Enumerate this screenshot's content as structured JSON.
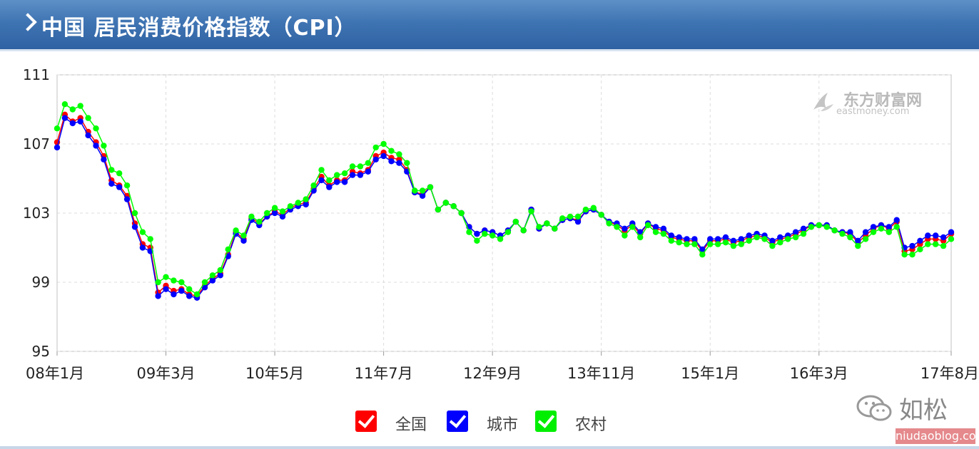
{
  "header": {
    "title": "中国 居民消费价格指数（CPI）"
  },
  "watermark": {
    "brand": "东方财富网",
    "domain": "eastmoney.com"
  },
  "branding": {
    "wechat_name": "如松",
    "site": "niudaoblog.com"
  },
  "colors": {
    "national": "#ff0000",
    "urban": "#0000ff",
    "rural": "#00ff00",
    "grid": "#dcdcdc",
    "axis": "#c0c0c0"
  },
  "chart_data": {
    "type": "line",
    "title": "",
    "xlabel": "",
    "ylabel": "",
    "ylim": [
      95,
      111
    ],
    "yticks": [
      "111",
      "107",
      "103",
      "99",
      "95"
    ],
    "xtick_labels": [
      "08年1月",
      "09年3月",
      "10年5月",
      "11年7月",
      "12年9月",
      "13年11月",
      "15年1月",
      "16年3月",
      "17年8月"
    ],
    "xtick_months": [
      "2008-01",
      "2009-03",
      "2010-05",
      "2011-07",
      "2012-09",
      "2013-11",
      "2015-01",
      "2016-03",
      "2017-08"
    ],
    "start_month": "2008-01",
    "end_month": "2017-08",
    "grid": true,
    "legend_position": "bottom-center",
    "series": [
      {
        "name": "全国",
        "color": "#ff0000",
        "values": [
          107.1,
          108.7,
          108.3,
          108.5,
          107.7,
          107.1,
          106.3,
          104.9,
          104.6,
          104.0,
          102.4,
          101.2,
          101.0,
          98.4,
          98.8,
          98.5,
          98.6,
          98.3,
          98.2,
          98.8,
          99.2,
          99.5,
          100.6,
          101.9,
          101.5,
          102.7,
          102.4,
          102.8,
          103.1,
          102.9,
          103.3,
          103.5,
          103.6,
          104.4,
          105.1,
          104.6,
          104.9,
          104.9,
          105.4,
          105.3,
          105.5,
          106.3,
          106.5,
          106.2,
          106.1,
          105.5,
          104.2,
          104.1,
          104.5,
          103.2,
          103.6,
          103.4,
          103.0,
          102.2,
          101.8,
          102.0,
          101.9,
          101.7,
          102.0,
          102.5,
          102.0,
          103.2,
          102.1,
          102.4,
          102.1,
          102.6,
          102.7,
          102.6,
          103.1,
          103.2,
          102.9,
          102.5,
          102.3,
          102.0,
          102.3,
          101.8,
          102.4,
          102.1,
          102.0,
          101.6,
          101.5,
          101.4,
          101.4,
          100.8,
          101.4,
          101.4,
          101.5,
          101.3,
          101.4,
          101.6,
          101.7,
          101.6,
          101.3,
          101.5,
          101.6,
          101.8,
          102.0,
          102.3,
          102.3,
          102.3,
          102.0,
          101.9,
          101.8,
          101.3,
          101.7,
          102.1,
          102.3,
          102.1,
          102.5,
          100.8,
          100.9,
          101.2,
          101.5,
          101.5,
          101.4,
          101.8
        ]
      },
      {
        "name": "城市",
        "color": "#0000ff",
        "values": [
          106.8,
          108.5,
          108.2,
          108.3,
          107.5,
          106.9,
          106.1,
          104.7,
          104.5,
          103.8,
          102.2,
          101.0,
          100.8,
          98.2,
          98.6,
          98.3,
          98.5,
          98.2,
          98.1,
          98.7,
          99.1,
          99.4,
          100.5,
          101.8,
          101.4,
          102.6,
          102.3,
          102.8,
          103.0,
          102.8,
          103.2,
          103.4,
          103.5,
          104.3,
          104.9,
          104.5,
          104.8,
          104.8,
          105.2,
          105.2,
          105.4,
          106.1,
          106.3,
          106.0,
          105.9,
          105.4,
          104.2,
          104.0,
          104.5,
          103.2,
          103.6,
          103.4,
          103.0,
          102.2,
          101.8,
          102.0,
          101.9,
          101.7,
          102.0,
          102.5,
          102.0,
          103.2,
          102.1,
          102.4,
          102.1,
          102.6,
          102.7,
          102.5,
          103.1,
          103.2,
          102.9,
          102.5,
          102.4,
          102.1,
          102.4,
          101.9,
          102.4,
          102.2,
          102.1,
          101.7,
          101.6,
          101.5,
          101.5,
          100.9,
          101.5,
          101.5,
          101.6,
          101.4,
          101.5,
          101.7,
          101.8,
          101.7,
          101.4,
          101.6,
          101.7,
          101.9,
          102.1,
          102.3,
          102.3,
          102.3,
          102.0,
          101.9,
          101.9,
          101.4,
          101.9,
          102.2,
          102.3,
          102.2,
          102.6,
          101.0,
          101.1,
          101.4,
          101.7,
          101.7,
          101.6,
          101.9
        ]
      },
      {
        "name": "农村",
        "color": "#00ff00",
        "values": [
          107.9,
          109.3,
          109.0,
          109.2,
          108.5,
          107.9,
          106.9,
          105.5,
          105.3,
          104.6,
          103.0,
          101.9,
          101.5,
          99.0,
          99.3,
          99.1,
          99.0,
          98.6,
          98.3,
          99.0,
          99.4,
          99.7,
          100.9,
          102.0,
          101.7,
          102.8,
          102.5,
          103.0,
          103.3,
          103.1,
          103.4,
          103.6,
          103.8,
          104.6,
          105.5,
          104.9,
          105.2,
          105.3,
          105.7,
          105.7,
          105.9,
          106.8,
          107.0,
          106.6,
          106.4,
          105.9,
          104.3,
          104.3,
          104.5,
          103.2,
          103.6,
          103.4,
          103.0,
          101.9,
          101.4,
          101.8,
          101.7,
          101.5,
          101.9,
          102.5,
          102.0,
          103.1,
          102.2,
          102.4,
          102.1,
          102.7,
          102.8,
          102.8,
          103.2,
          103.3,
          102.9,
          102.4,
          102.2,
          101.7,
          102.2,
          101.6,
          102.3,
          101.9,
          101.8,
          101.4,
          101.3,
          101.2,
          101.2,
          100.6,
          101.2,
          101.2,
          101.3,
          101.1,
          101.2,
          101.4,
          101.6,
          101.5,
          101.1,
          101.3,
          101.5,
          101.6,
          101.8,
          102.2,
          102.3,
          102.2,
          102.0,
          101.8,
          101.6,
          101.1,
          101.5,
          101.9,
          102.1,
          101.9,
          102.2,
          100.6,
          100.6,
          100.9,
          101.2,
          101.2,
          101.1,
          101.5
        ]
      }
    ]
  }
}
